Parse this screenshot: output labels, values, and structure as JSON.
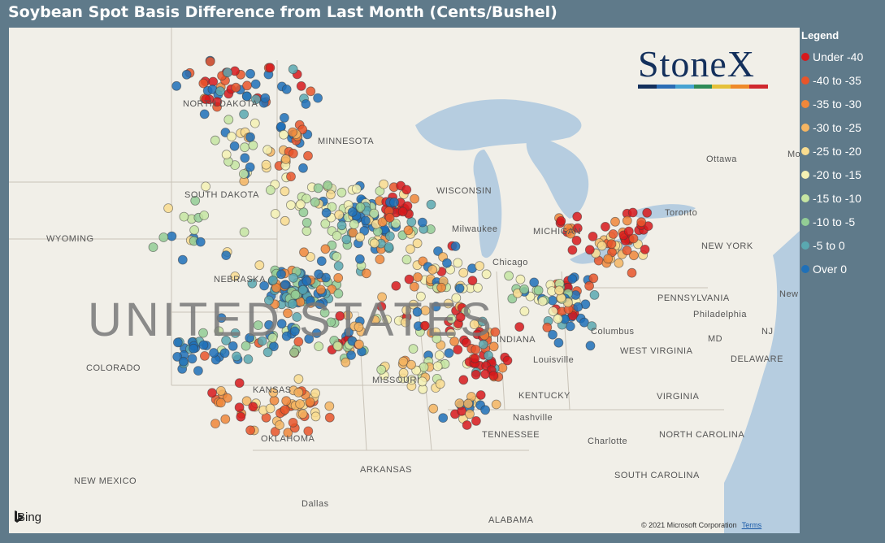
{
  "title": "Soybean Spot Basis Difference from Last Month (Cents/Bushel)",
  "legend": {
    "title": "Legend",
    "items": [
      {
        "label": "Under -40",
        "color": "#d7191c"
      },
      {
        "label": "-40 to -35",
        "color": "#e8552a"
      },
      {
        "label": "-35 to -30",
        "color": "#f0873a"
      },
      {
        "label": "-30 to -25",
        "color": "#f5b562"
      },
      {
        "label": "-25 to -20",
        "color": "#f9dc8f"
      },
      {
        "label": "-20 to -15",
        "color": "#f4f1b4"
      },
      {
        "label": "-15 to -10",
        "color": "#c6e5a2"
      },
      {
        "label": "-10 to -5",
        "color": "#93cd95"
      },
      {
        "label": "-5 to 0",
        "color": "#5aa8b0"
      },
      {
        "label": "Over 0",
        "color": "#1f70b8"
      }
    ]
  },
  "logo": {
    "text": "StoneX",
    "bar_colors": [
      "#14305c",
      "#2c6db5",
      "#46a3d2",
      "#2e8b57",
      "#e5c13b",
      "#ef8a2a",
      "#d0282e"
    ]
  },
  "map": {
    "country_label": "UNITED STATES",
    "place_labels": [
      "NORTH DAKOTA",
      "MINNESOTA",
      "SOUTH DAKOTA",
      "WYOMING",
      "NEBRASKA",
      "COLORADO",
      "KANSAS",
      "MISSOURI",
      "OKLAHOMA",
      "ARKANSAS",
      "NEW MEXICO",
      "Dallas",
      "WISCONSIN",
      "Milwaukee",
      "Chicago",
      "MICHIGAN",
      "INDIANA",
      "Columbus",
      "Louisville",
      "KENTUCKY",
      "Nashville",
      "TENNESSEE",
      "WEST VIRGINIA",
      "VIRGINIA",
      "PENNSYLVANIA",
      "Philadelphia",
      "NEW YORK",
      "Toronto",
      "Ottawa",
      "Montreal",
      "New York",
      "NORTH CAROLINA",
      "Charlotte",
      "SOUTH CAROLINA",
      "ALABAMA",
      "MD",
      "DELAWARE",
      "NJ"
    ],
    "attribution": "Bing",
    "copyright": "© 2021 Microsoft Corporation",
    "terms": "Terms"
  }
}
